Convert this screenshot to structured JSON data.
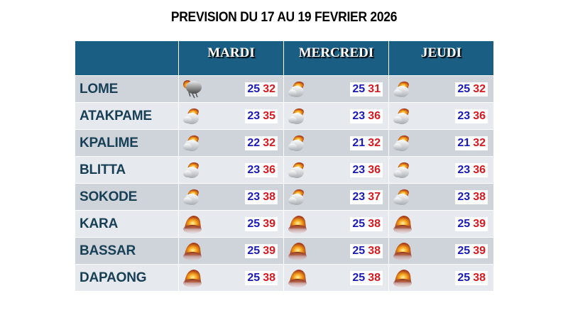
{
  "title": "PREVISION DU 17 AU 19 FEVRIER 2026",
  "colors": {
    "header_bg": "#1b5e84",
    "row_dark": "#cfd4da",
    "row_light": "#e6e9ed",
    "city_text": "#173f55",
    "temp_min": "#1a1ab8",
    "temp_max": "#d71920"
  },
  "days": [
    "MARDI",
    "MERCREDI",
    "JEUDI"
  ],
  "rows": [
    {
      "city": "LOME",
      "forecast": [
        {
          "icon": "thunderstorm-icon",
          "min": "25",
          "max": "32"
        },
        {
          "icon": "partly-cloudy-icon",
          "min": "25",
          "max": "31"
        },
        {
          "icon": "partly-cloudy-icon",
          "min": "25",
          "max": "32"
        }
      ]
    },
    {
      "city": "ATAKPAME",
      "forecast": [
        {
          "icon": "partly-cloudy-icon",
          "min": "23",
          "max": "35"
        },
        {
          "icon": "partly-cloudy-icon",
          "min": "23",
          "max": "36"
        },
        {
          "icon": "partly-cloudy-icon",
          "min": "23",
          "max": "36"
        }
      ]
    },
    {
      "city": "KPALIME",
      "forecast": [
        {
          "icon": "partly-cloudy-icon",
          "min": "22",
          "max": "32"
        },
        {
          "icon": "partly-cloudy-icon",
          "min": "21",
          "max": "32"
        },
        {
          "icon": "partly-cloudy-icon",
          "min": "21",
          "max": "32"
        }
      ]
    },
    {
      "city": "BLITTA",
      "forecast": [
        {
          "icon": "partly-cloudy-icon",
          "min": "23",
          "max": "36"
        },
        {
          "icon": "partly-cloudy-icon",
          "min": "23",
          "max": "36"
        },
        {
          "icon": "partly-cloudy-icon",
          "min": "23",
          "max": "36"
        }
      ]
    },
    {
      "city": "SOKODE",
      "forecast": [
        {
          "icon": "partly-cloudy-icon",
          "min": "23",
          "max": "38"
        },
        {
          "icon": "partly-cloudy-icon",
          "min": "23",
          "max": "37"
        },
        {
          "icon": "partly-cloudy-icon",
          "min": "23",
          "max": "38"
        }
      ]
    },
    {
      "city": "KARA",
      "forecast": [
        {
          "icon": "hazy-sun-icon",
          "min": "25",
          "max": "39"
        },
        {
          "icon": "hazy-sun-icon",
          "min": "25",
          "max": "38"
        },
        {
          "icon": "hazy-sun-icon",
          "min": "25",
          "max": "39"
        }
      ]
    },
    {
      "city": "BASSAR",
      "forecast": [
        {
          "icon": "hazy-sun-icon",
          "min": "25",
          "max": "39"
        },
        {
          "icon": "hazy-sun-icon",
          "min": "25",
          "max": "38"
        },
        {
          "icon": "hazy-sun-icon",
          "min": "25",
          "max": "39"
        }
      ]
    },
    {
      "city": "DAPAONG",
      "forecast": [
        {
          "icon": "hazy-sun-icon",
          "min": "25",
          "max": "38"
        },
        {
          "icon": "hazy-sun-icon",
          "min": "25",
          "max": "38"
        },
        {
          "icon": "hazy-sun-icon",
          "min": "25",
          "max": "38"
        }
      ]
    }
  ]
}
